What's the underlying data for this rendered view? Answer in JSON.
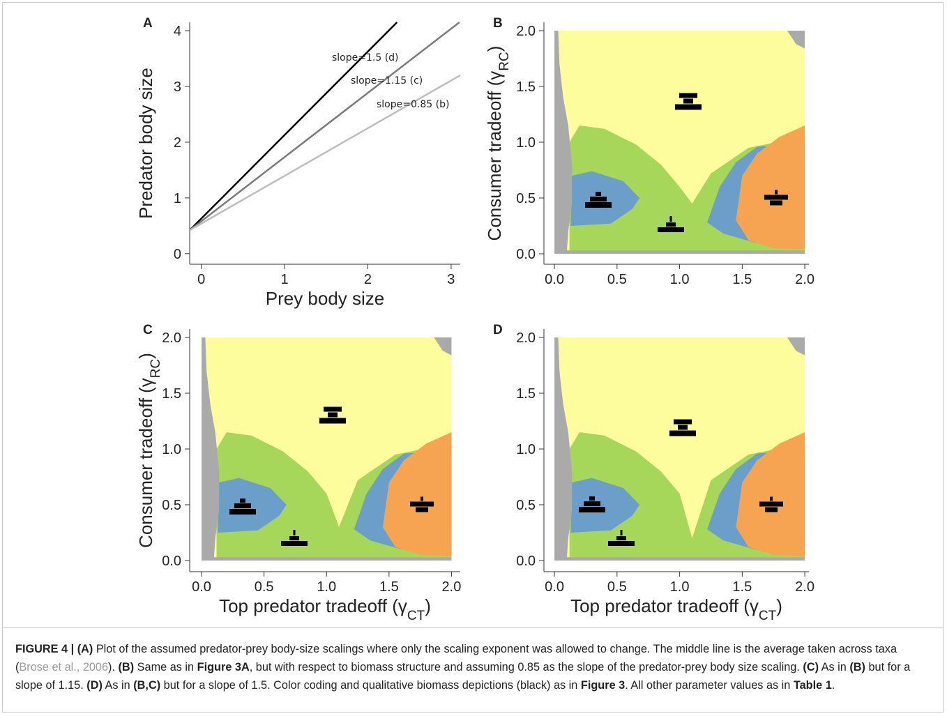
{
  "chart_data": [
    {
      "type": "line",
      "panel": "A",
      "xlabel": "Prey body size",
      "ylabel": "Predator body size",
      "xlim": [
        -0.14,
        3.11
      ],
      "ylim": [
        -0.19,
        4.15
      ],
      "xticks": [
        0,
        1,
        2,
        3
      ],
      "yticks": [
        0,
        1,
        2,
        3,
        4
      ],
      "series": [
        {
          "name": "slope=1.5 (d)",
          "color": "#000000",
          "x": [
            -0.14,
            2.35
          ],
          "values": [
            0.42,
            4.15
          ]
        },
        {
          "name": "slope=1.15 (c)",
          "color": "#7a7a7a",
          "x": [
            -0.14,
            3.1
          ],
          "values": [
            0.42,
            4.15
          ]
        },
        {
          "name": "slope=0.85 (b)",
          "color": "#bdbdbd",
          "x": [
            -0.14,
            3.11
          ],
          "values": [
            0.42,
            3.2
          ]
        }
      ]
    },
    {
      "type": "region",
      "panel": "B",
      "ylabel": [
        "Consumer tradeoff (γ",
        "RC",
        ")"
      ],
      "xlim": [
        -0.084,
        2.033
      ],
      "ylim": [
        -0.094,
        2.075
      ],
      "xticks": [
        {
          "value": 0,
          "label": "0.0"
        },
        0.5,
        {
          "value": 1,
          "label": "1.0"
        },
        1.5,
        {
          "value": 2,
          "label": "2.0"
        }
      ],
      "yticks": [
        {
          "value": 0,
          "label": "0.0"
        },
        0.5,
        {
          "value": 1,
          "label": "1.0"
        },
        1.5,
        {
          "value": 2,
          "label": "2.0"
        }
      ]
    },
    {
      "type": "region",
      "panel": "C",
      "xlabel": [
        "Top predator tradeoff (γ",
        "CT",
        ")"
      ],
      "ylabel": [
        "Consumer tradeoff (γ",
        "RC",
        ")"
      ],
      "xlim": [
        -0.095,
        2.07
      ],
      "ylim": [
        -0.1,
        2.075
      ],
      "xticks": [
        {
          "value": 0,
          "label": "0.0"
        },
        0.5,
        {
          "value": 1,
          "label": "1.0"
        },
        1.5,
        {
          "value": 2,
          "label": "2.0"
        }
      ],
      "yticks": [
        {
          "value": 0,
          "label": "0.0"
        },
        0.5,
        {
          "value": 1,
          "label": "1.0"
        },
        1.5,
        {
          "value": 2,
          "label": "2.0"
        }
      ]
    },
    {
      "type": "region",
      "panel": "D",
      "xlabel": [
        "Top predator tradeoff (γ",
        "CT",
        ")"
      ],
      "xlim": [
        -0.084,
        2.033
      ],
      "ylim": [
        -0.1,
        2.075
      ],
      "xticks": [
        {
          "value": 0,
          "label": "0.0"
        },
        0.5,
        {
          "value": 1,
          "label": "1.0"
        },
        1.5,
        {
          "value": 2,
          "label": "2.0"
        }
      ],
      "yticks": [
        {
          "value": 0,
          "label": "0.0"
        },
        0.5,
        {
          "value": 1,
          "label": "1.0"
        },
        1.5,
        {
          "value": 2,
          "label": "2.0"
        }
      ]
    }
  ],
  "caption": [
    {
      "text": "FIGURE 4 | (A)",
      "style": "bold"
    },
    {
      "text": " Plot of the assumed predator-prey body-size scalings where only the scaling exponent was allowed to change. The middle line is the average taken across taxa ("
    },
    {
      "text": "Brose et al., 2006",
      "style": "link"
    },
    {
      "text": "). "
    },
    {
      "text": "(B)",
      "style": "bold"
    },
    {
      "text": " Same as in "
    },
    {
      "text": "Figure 3A",
      "style": "bold"
    },
    {
      "text": ", but with respect to biomass structure and assuming 0.85 as the slope of the predator-prey body size scaling. "
    },
    {
      "text": "(C)",
      "style": "bold"
    },
    {
      "text": " As in "
    },
    {
      "text": "(B)",
      "style": "bold"
    },
    {
      "text": " but for a slope of 1.15. "
    },
    {
      "text": "(D)",
      "style": "bold"
    },
    {
      "text": " As in "
    },
    {
      "text": "(B,C)",
      "style": "bold"
    },
    {
      "text": " but for a slope of 1.5. Color coding and qualitative biomass depictions (black) as in "
    },
    {
      "text": "Figure 3",
      "style": "bold"
    },
    {
      "text": ". All other parameter values as in "
    },
    {
      "text": "Table 1",
      "style": "bold"
    },
    {
      "text": "."
    }
  ]
}
